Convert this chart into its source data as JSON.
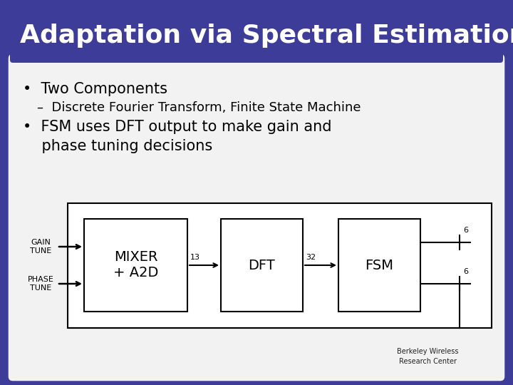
{
  "title": "Adaptation via Spectral Estimation",
  "title_fontsize": 26,
  "bg_outer": "#3d3d99",
  "bg_inner": "#f2f2f2",
  "bullet1": "•  Two Components",
  "bullet1_sub": "–  Discrete Fourier Transform, Finite State Machine",
  "bullet2_line1": "•  FSM uses DFT output to make gain and",
  "bullet2_line2": "    phase tuning decisions",
  "bullet_fontsize": 15,
  "sub_fontsize": 13,
  "block_labels": [
    "MIXER\n+ A2D",
    "DFT",
    "FSM"
  ],
  "signal_labels": [
    "13",
    "32"
  ],
  "output_labels": [
    "6",
    "6"
  ],
  "input_labels_top": "GAIN\nTUNE",
  "input_labels_bot": "PHASE\nTUNE",
  "block_color": "#ffffff",
  "block_edgecolor": "#000000",
  "text_color": "#000000",
  "title_bg_color": "#3d3d99",
  "content_bg_color": "#f2f2f2"
}
